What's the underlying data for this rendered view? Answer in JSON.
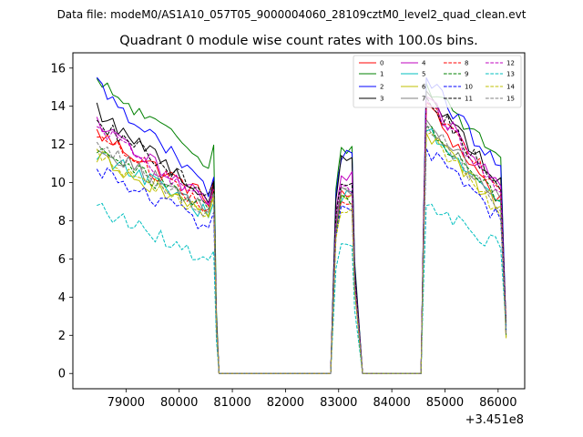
{
  "supertitle": "Data file: modeM0/AS1A10_057T05_9000004060_28109cztM0_level2_quad_clean.evt",
  "chart_data": {
    "type": "line",
    "title": "Quadrant 0 module wise count rates with 100.0s bins.",
    "xlabel": "",
    "ylabel": "",
    "x_offset_label": "+3.451e8",
    "xlim": [
      78000,
      86500
    ],
    "ylim": [
      -0.8,
      16.8
    ],
    "xticks": [
      79000,
      80000,
      81000,
      82000,
      83000,
      84000,
      85000,
      86000
    ],
    "xtick_labels": [
      "79000",
      "80000",
      "81000",
      "82000",
      "83000",
      "84000",
      "85000",
      "86000"
    ],
    "yticks": [
      0,
      2,
      4,
      6,
      8,
      10,
      12,
      14,
      16
    ],
    "ytick_labels": [
      "0",
      "2",
      "4",
      "6",
      "8",
      "10",
      "12",
      "14",
      "16"
    ],
    "segments": [
      {
        "start": 78450,
        "end": 80650
      },
      {
        "start": 80750,
        "end": 82850,
        "zero": true
      },
      {
        "start": 82950,
        "end": 83250
      },
      {
        "start": 83450,
        "end": 84550,
        "zero": true
      },
      {
        "start": 84650,
        "end": 86050
      }
    ],
    "series": [
      {
        "name": "0",
        "color": "#ff0000",
        "style": "solid",
        "level": [
          12.6,
          9.0
        ],
        "s3": 9.3,
        "s5": [
          14.0,
          9.0
        ]
      },
      {
        "name": "1",
        "color": "#008000",
        "style": "solid",
        "level": [
          15.2,
          10.9
        ],
        "s3": 11.8,
        "s5": [
          15.2,
          11.0
        ]
      },
      {
        "name": "2",
        "color": "#0000ff",
        "style": "solid",
        "level": [
          15.2,
          9.3
        ],
        "s3": 11.4,
        "s5": [
          15.5,
          10.6
        ]
      },
      {
        "name": "3",
        "color": "#000000",
        "style": "solid",
        "level": [
          13.8,
          9.0
        ],
        "s3": 11.1,
        "s5": [
          14.8,
          10.0
        ]
      },
      {
        "name": "4",
        "color": "#bf00bf",
        "style": "solid",
        "level": [
          13.0,
          8.9
        ],
        "s3": 10.3,
        "s5": [
          14.5,
          9.6
        ]
      },
      {
        "name": "5",
        "color": "#00bfbf",
        "style": "solid",
        "level": [
          11.6,
          8.2
        ],
        "s3": 9.2,
        "s5": [
          12.7,
          8.8
        ]
      },
      {
        "name": "6",
        "color": "#bfbf00",
        "style": "solid",
        "level": [
          11.4,
          8.2
        ],
        "s3": 9.0,
        "s5": [
          12.6,
          8.6
        ]
      },
      {
        "name": "7",
        "color": "#808080",
        "style": "solid",
        "level": [
          12.0,
          8.4
        ],
        "s3": 9.7,
        "s5": [
          13.3,
          9.0
        ]
      },
      {
        "name": "8",
        "color": "#ff0000",
        "style": "dashed",
        "level": [
          12.6,
          8.5
        ],
        "s3": 9.2,
        "s5": [
          14.2,
          9.5
        ]
      },
      {
        "name": "9",
        "color": "#008000",
        "style": "dashed",
        "level": [
          11.7,
          8.5
        ],
        "s3": 9.0,
        "s5": [
          12.9,
          9.0
        ]
      },
      {
        "name": "10",
        "color": "#0000ff",
        "style": "dashed",
        "level": [
          10.8,
          7.5
        ],
        "s3": 8.7,
        "s5": [
          11.8,
          8.0
        ]
      },
      {
        "name": "11",
        "color": "#000000",
        "style": "dashed",
        "level": [
          13.3,
          9.2
        ],
        "s3": 10.1,
        "s5": [
          14.5,
          9.6
        ]
      },
      {
        "name": "12",
        "color": "#bf00bf",
        "style": "dashed",
        "level": [
          12.9,
          8.6
        ],
        "s3": 9.5,
        "s5": [
          14.3,
          9.5
        ]
      },
      {
        "name": "13",
        "color": "#00bfbf",
        "style": "dashed",
        "level": [
          8.7,
          5.7
        ],
        "s3": 6.7,
        "s5": [
          8.8,
          6.6
        ]
      },
      {
        "name": "14",
        "color": "#bfbf00",
        "style": "dashed",
        "level": [
          11.6,
          8.0
        ],
        "s3": 8.6,
        "s5": [
          12.5,
          8.3
        ]
      },
      {
        "name": "15",
        "color": "#808080",
        "style": "dashed",
        "level": [
          11.9,
          8.3
        ],
        "s3": 9.3,
        "s5": [
          13.1,
          8.6
        ]
      }
    ]
  }
}
